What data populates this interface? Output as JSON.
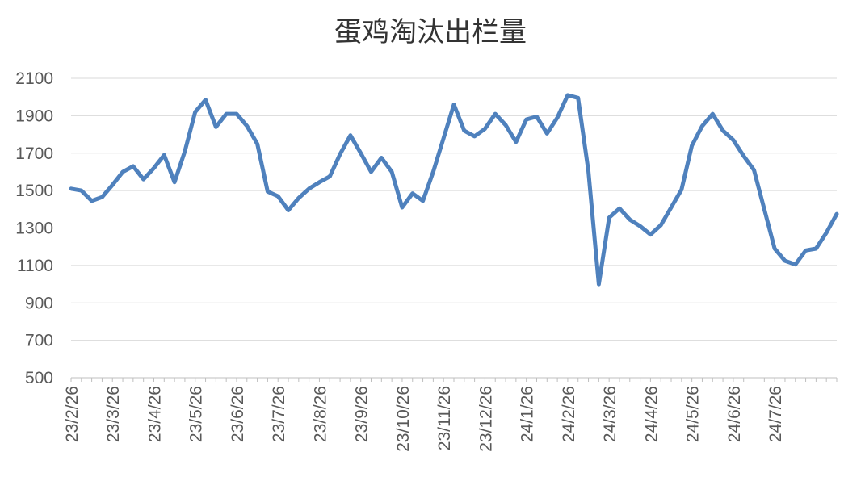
{
  "chart_data": {
    "type": "line",
    "title": "蛋鸡淘汰出栏量",
    "xlabel": "",
    "ylabel": "",
    "ylim": [
      500,
      2100
    ],
    "yticks": [
      "500",
      "700",
      "900",
      "1100",
      "1300",
      "1500",
      "1700",
      "1900",
      "2100"
    ],
    "x_tick_labels": [
      "23/2/26",
      "23/3/26",
      "23/4/26",
      "23/5/26",
      "23/6/26",
      "23/7/26",
      "23/8/26",
      "23/9/26",
      "23/10/26",
      "23/11/26",
      "23/12/26",
      "24/1/26",
      "24/2/26",
      "24/3/26",
      "24/4/26",
      "24/5/26",
      "24/6/26",
      "24/7/26"
    ],
    "grid": true,
    "colors": {
      "line": "#4f81bd",
      "grid": "#d9d9d9",
      "axis": "#bfbfbf"
    },
    "series": [
      {
        "values": [
          1510,
          1500,
          1445,
          1465,
          1530,
          1600,
          1630,
          1560,
          1620,
          1690,
          1545,
          1710,
          1920,
          1985,
          1840,
          1910,
          1910,
          1845,
          1750,
          1495,
          1470,
          1395,
          1460,
          1510,
          1545,
          1575,
          1695,
          1795,
          1700,
          1600,
          1675,
          1600,
          1410,
          1485,
          1445,
          1600,
          1780,
          1960,
          1820,
          1790,
          1830,
          1910,
          1850,
          1760,
          1880,
          1895,
          1805,
          1890,
          2010,
          1995,
          1605,
          1000,
          1355,
          1405,
          1345,
          1310,
          1265,
          1315,
          1410,
          1505,
          1740,
          1845,
          1910,
          1820,
          1770,
          1685,
          1610,
          1400,
          1190,
          1125,
          1105,
          1180,
          1190,
          1275,
          1375
        ]
      }
    ]
  }
}
